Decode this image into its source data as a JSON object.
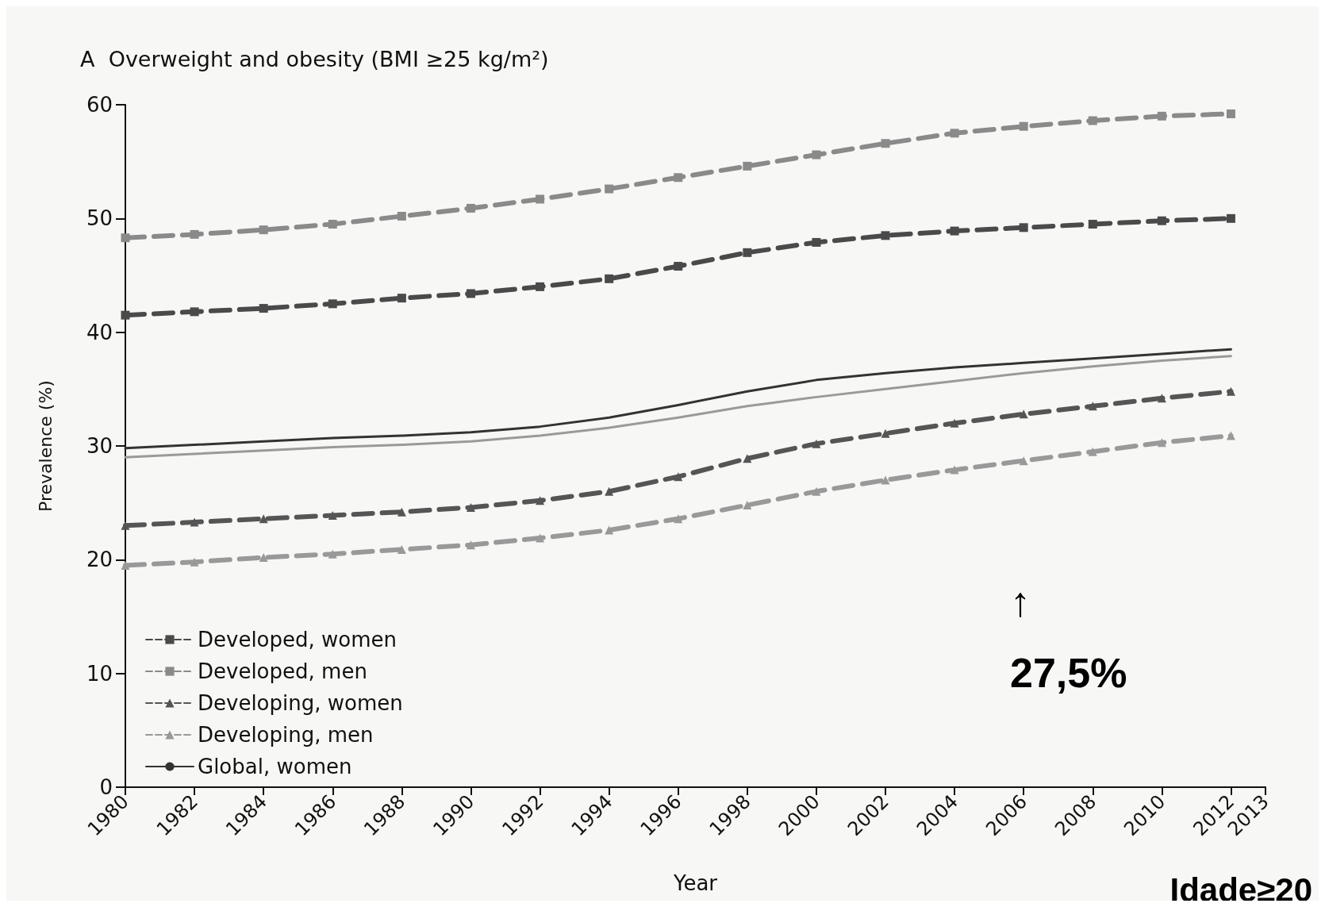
{
  "chart_data": {
    "type": "line",
    "title": "A  Overweight and obesity (BMI ≥25 kg/m²)",
    "xlabel": "Year",
    "ylabel": "Prevalence (%)",
    "x": [
      1980,
      1982,
      1984,
      1986,
      1988,
      1990,
      1992,
      1994,
      1996,
      1998,
      2000,
      2002,
      2004,
      2006,
      2008,
      2010,
      2012
    ],
    "series": [
      {
        "name": "Developed, women",
        "color": "#4a4a4a",
        "marker": "square",
        "line_style": "dashed",
        "values": [
          41.5,
          41.8,
          42.1,
          42.5,
          43.0,
          43.4,
          44.0,
          44.7,
          45.8,
          47.0,
          47.9,
          48.5,
          48.9,
          49.2,
          49.5,
          49.8,
          50.0
        ]
      },
      {
        "name": "Developed, men",
        "color": "#8a8a8a",
        "marker": "square",
        "line_style": "dashed",
        "values": [
          48.3,
          48.6,
          49.0,
          49.5,
          50.2,
          50.9,
          51.7,
          52.6,
          53.6,
          54.6,
          55.6,
          56.6,
          57.5,
          58.1,
          58.6,
          59.0,
          59.2
        ]
      },
      {
        "name": "Developing, women",
        "color": "#555555",
        "marker": "triangle",
        "line_style": "dashed",
        "values": [
          23.0,
          23.3,
          23.6,
          23.9,
          24.2,
          24.6,
          25.2,
          26.0,
          27.3,
          28.9,
          30.2,
          31.1,
          32.0,
          32.8,
          33.5,
          34.2,
          34.8
        ]
      },
      {
        "name": "Developing, men",
        "color": "#999999",
        "marker": "triangle",
        "line_style": "dashed",
        "values": [
          19.5,
          19.8,
          20.2,
          20.5,
          20.9,
          21.3,
          21.9,
          22.6,
          23.6,
          24.8,
          26.0,
          27.0,
          27.9,
          28.7,
          29.5,
          30.3,
          30.9
        ]
      },
      {
        "name": "Global, women",
        "color": "#333333",
        "marker": "none",
        "line_style": "solid",
        "values": [
          29.8,
          30.1,
          30.4,
          30.7,
          30.9,
          31.2,
          31.7,
          32.5,
          33.6,
          34.8,
          35.8,
          36.4,
          36.9,
          37.3,
          37.7,
          38.1,
          38.5
        ]
      },
      {
        "color": "#9a9a9a",
        "marker": "none",
        "line_style": "solid",
        "values": [
          29.0,
          29.3,
          29.6,
          29.9,
          30.1,
          30.4,
          30.9,
          31.6,
          32.5,
          33.5,
          34.3,
          35.0,
          35.7,
          36.4,
          37.0,
          37.5,
          37.9
        ]
      }
    ],
    "xlim": [
      1980,
      2013
    ],
    "xticks": [
      1980,
      1982,
      1984,
      1986,
      1988,
      1990,
      1992,
      1994,
      1996,
      1998,
      2000,
      2002,
      2004,
      2006,
      2008,
      2010,
      2012,
      2013
    ],
    "ylim": [
      0,
      60
    ],
    "yticks": [
      0,
      10,
      20,
      30,
      40,
      50,
      60
    ],
    "legend": "bottom left",
    "annotations": [
      "↑\n27,5%",
      "Idade≥20"
    ]
  }
}
